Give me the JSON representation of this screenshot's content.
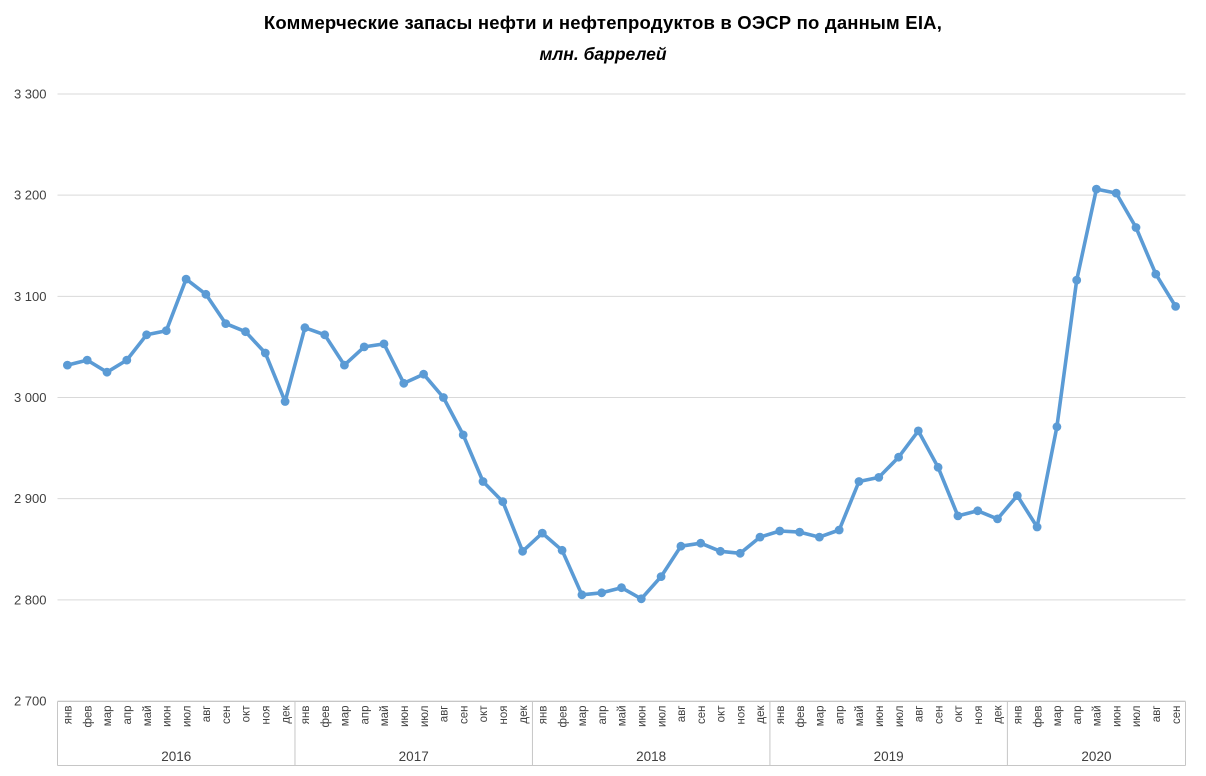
{
  "chart_data": {
    "type": "line",
    "title": "Коммерческие запасы нефти и нефтепродуктов в ОЭСР по данным EIA,",
    "subtitle": "млн. баррелей",
    "ylim": [
      2700,
      3300
    ],
    "grid": true,
    "legend": false,
    "y_ticks": [
      {
        "value": 3300,
        "label": "3 300"
      },
      {
        "value": 3200,
        "label": "3 200"
      },
      {
        "value": 3100,
        "label": "3 100"
      },
      {
        "value": 3000,
        "label": "3 000"
      },
      {
        "value": 2900,
        "label": "2 900"
      },
      {
        "value": 2800,
        "label": "2 800"
      },
      {
        "value": 2700,
        "label": "2 700"
      }
    ],
    "month_names": [
      "янв",
      "фев",
      "мар",
      "апр",
      "май",
      "июн",
      "июл",
      "авг",
      "сен",
      "окт",
      "ноя",
      "дек"
    ],
    "year_groups": [
      {
        "label": "2016",
        "month_count": 12
      },
      {
        "label": "2017",
        "month_count": 12
      },
      {
        "label": "2018",
        "month_count": 12
      },
      {
        "label": "2019",
        "month_count": 12
      },
      {
        "label": "2020",
        "month_count": 9
      }
    ],
    "values": [
      3032,
      3037,
      3025,
      3037,
      3062,
      3066,
      3117,
      3102,
      3073,
      3065,
      3044,
      2996,
      3069,
      3062,
      3032,
      3050,
      3053,
      3014,
      3023,
      3000,
      2963,
      2917,
      2897,
      2848,
      2866,
      2849,
      2805,
      2807,
      2812,
      2801,
      2823,
      2853,
      2856,
      2848,
      2846,
      2862,
      2868,
      2867,
      2862,
      2869,
      2917,
      2921,
      2941,
      2967,
      2931,
      2883,
      2888,
      2880,
      2903,
      2872,
      2971,
      3116,
      3206,
      3202,
      3168,
      3122,
      3090
    ]
  },
  "colors": {
    "line": "#5B9BD5",
    "marker": "#5B9BD5",
    "gridline": "#D9D9D9",
    "axis_band_border": "#C6C6C6",
    "axis_text": "#404040",
    "title_text": "#000000"
  }
}
